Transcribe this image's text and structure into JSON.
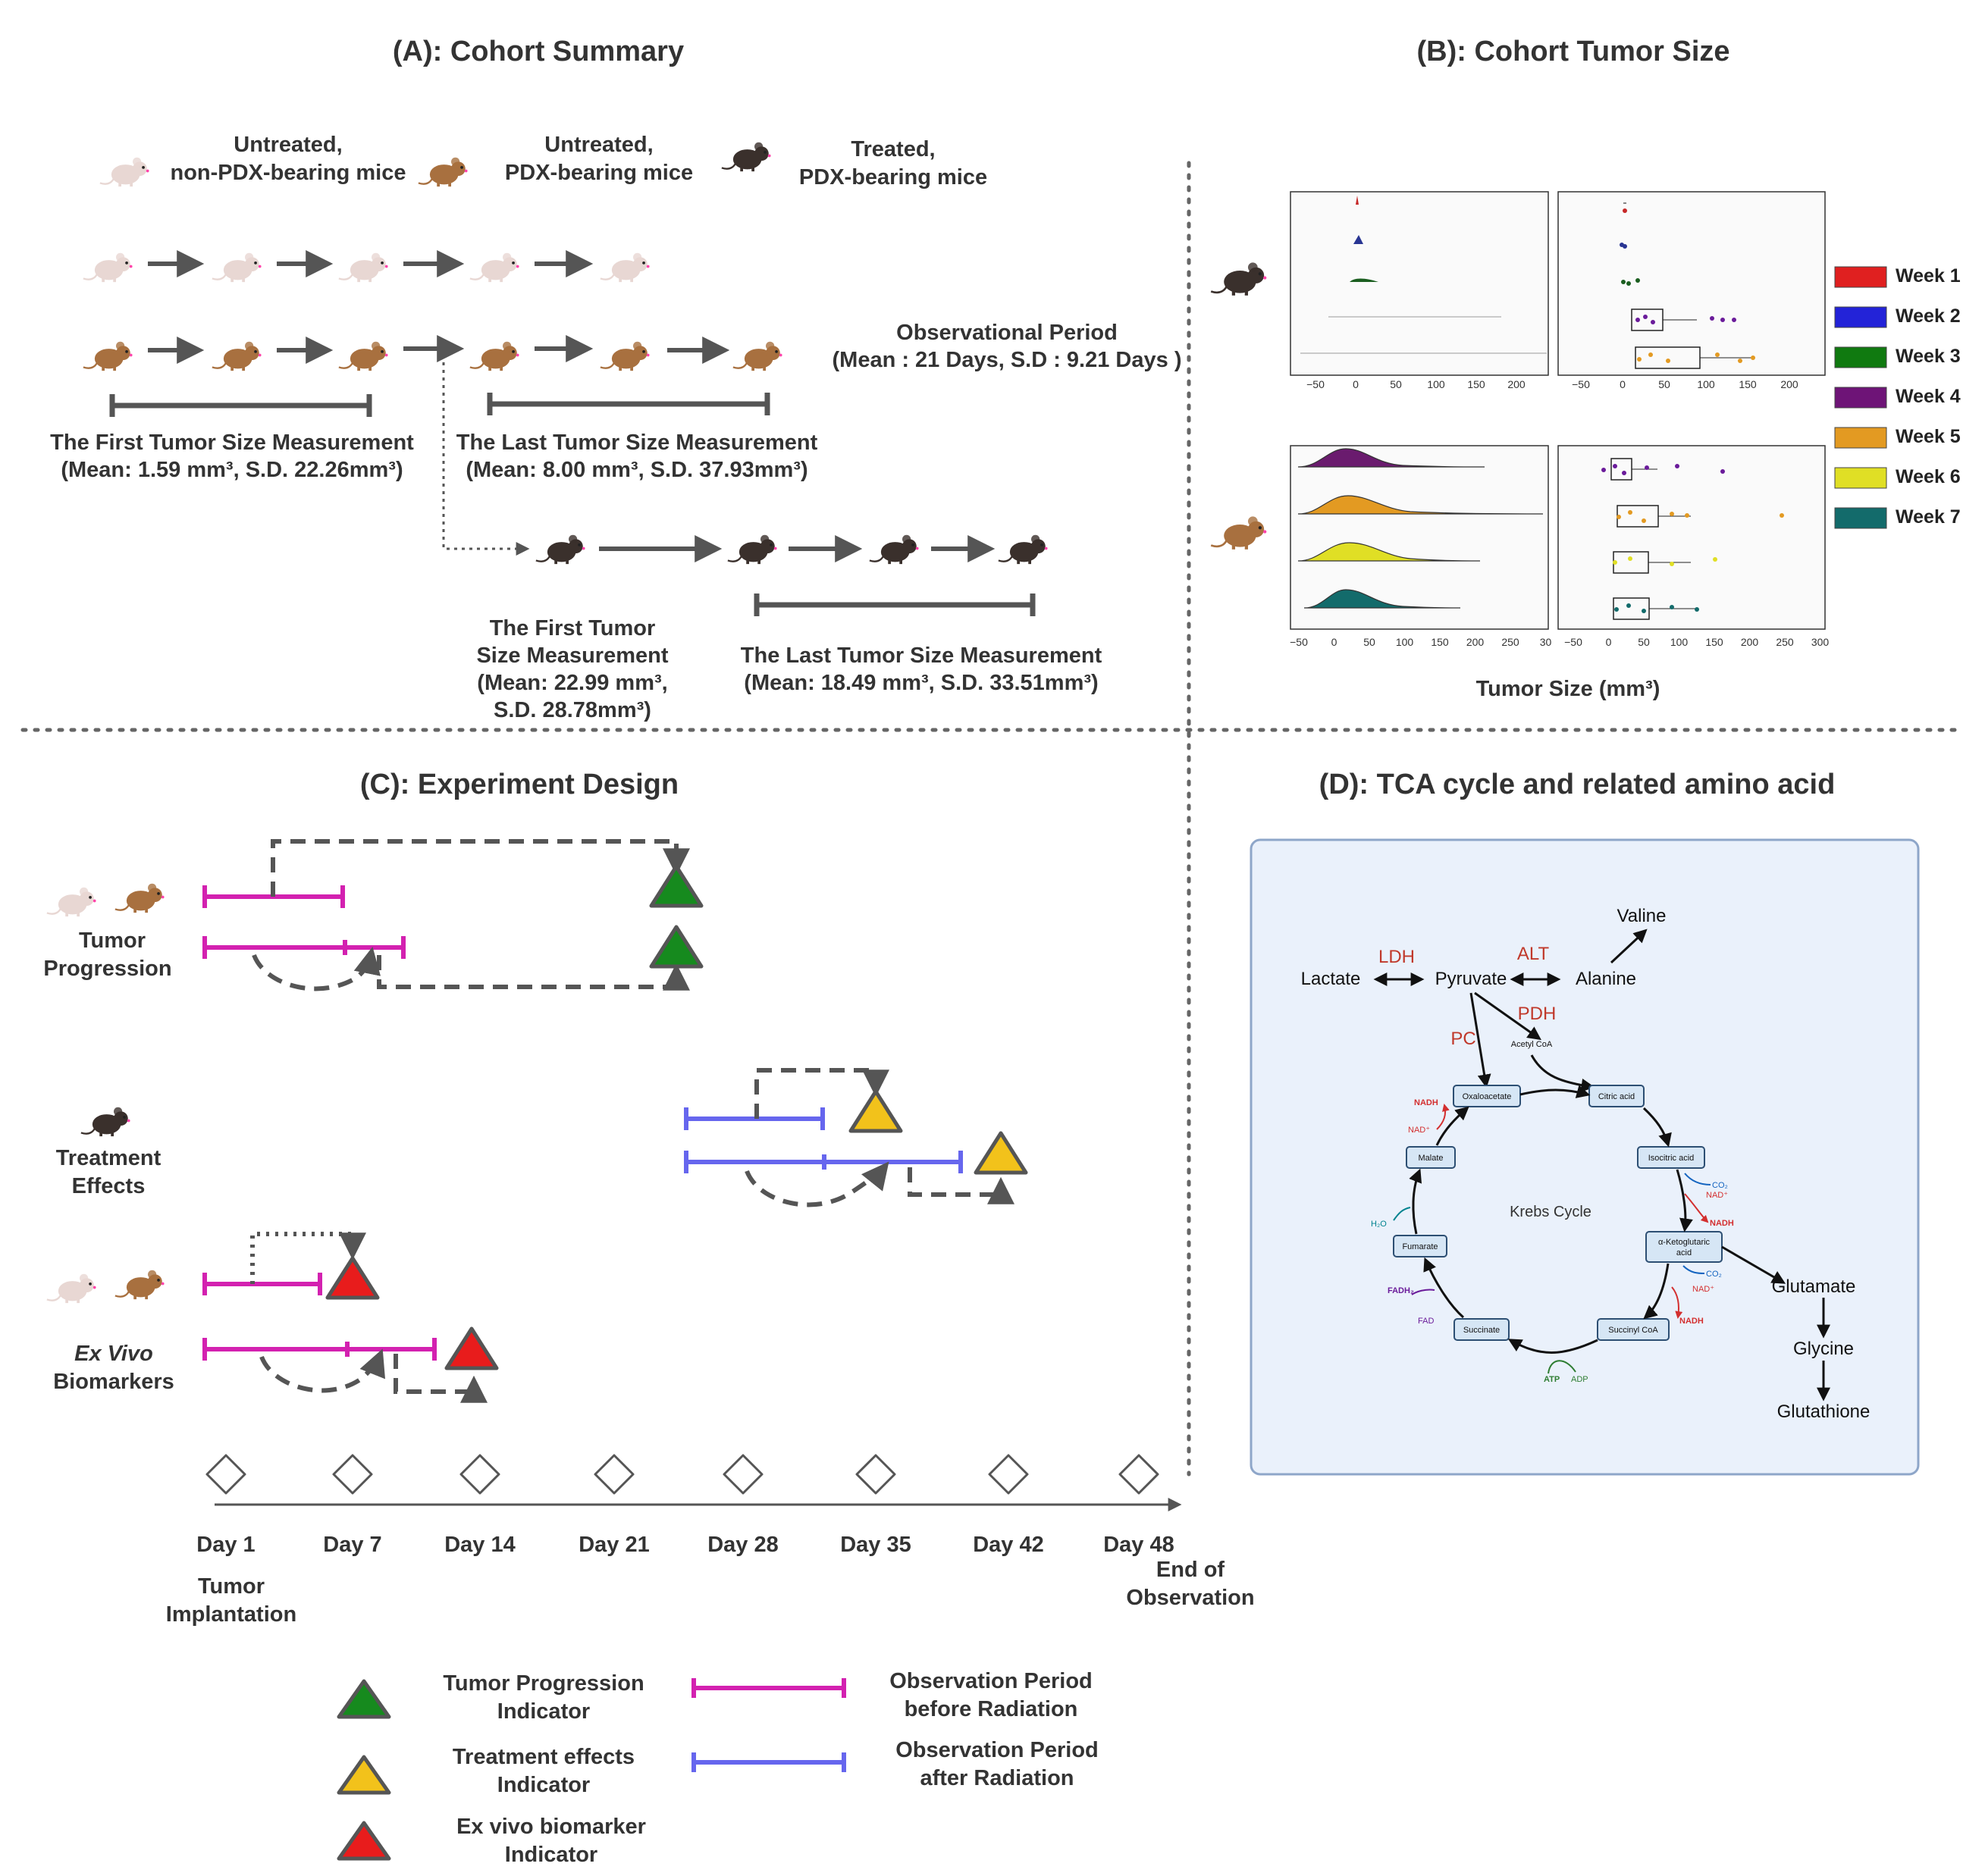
{
  "panel_a": {
    "title": "(A): Cohort Summary",
    "groups": [
      {
        "line1": "Untreated,",
        "line2": "non-PDX-bearing mice"
      },
      {
        "line1": "Untreated,",
        "line2": "PDX-bearing mice"
      },
      {
        "line1": "Treated,",
        "line2": "PDX-bearing mice"
      }
    ],
    "obs_period": {
      "line1": "Observational Period",
      "line2": "(Mean : 21 Days, S.D : 9.21 Days )"
    },
    "untreated_first": {
      "line1": "The First Tumor Size Measurement",
      "line2": "(Mean: 1.59 mm³, S.D. 22.26mm³)"
    },
    "untreated_last": {
      "line1": "The Last Tumor Size Measurement",
      "line2": "(Mean: 8.00 mm³, S.D. 37.93mm³)"
    },
    "treated_first": {
      "line1": "The First Tumor",
      "line2": "Size Measurement",
      "line3": "(Mean: 22.99 mm³,",
      "line4": "S.D. 28.78mm³)"
    },
    "treated_last": {
      "line1": "The Last Tumor Size Measurement",
      "line2": "(Mean: 18.49 mm³, S.D. 33.51mm³)"
    }
  },
  "panel_b": {
    "title": "(B): Cohort Tumor Size",
    "xlabel": "Tumor Size (mm³)",
    "top_ticks": [
      "−50",
      "0",
      "50",
      "100",
      "150",
      "200"
    ],
    "bottom_ticks": [
      "−50",
      "0",
      "50",
      "100",
      "150",
      "200",
      "250",
      "300"
    ],
    "bottom_left_ticks": [
      "−50",
      "0",
      "50",
      "100",
      "150",
      "200",
      "250",
      "30"
    ],
    "legend": [
      {
        "label": "Week 1",
        "color": "#e02020"
      },
      {
        "label": "Week 2",
        "color": "#2323d8"
      },
      {
        "label": "Week 3",
        "color": "#107a10"
      },
      {
        "label": "Week 4",
        "color": "#6e1477"
      },
      {
        "label": "Week 5",
        "color": "#e39a22"
      },
      {
        "label": "Week 6",
        "color": "#e0df25"
      },
      {
        "label": "Week 7",
        "color": "#136b6b"
      }
    ]
  },
  "panel_c": {
    "title": "(C): Experiment Design",
    "row1": {
      "line1": "Tumor",
      "line2": "Progression"
    },
    "row2": {
      "line1": "Treatment",
      "line2": "Effects"
    },
    "row3": {
      "line1": "Ex Vivo",
      "line2": "Biomarkers"
    },
    "days": [
      "Day 1",
      "Day 7",
      "Day 14",
      "Day 21",
      "Day 28",
      "Day 35",
      "Day 42",
      "Day 48"
    ],
    "start_label": {
      "line1": "Tumor",
      "line2": "Implantation"
    },
    "end_label": {
      "line1": "End of",
      "line2": "Observation"
    },
    "legend": {
      "tp": {
        "line1": "Tumor Progression",
        "line2": "Indicator"
      },
      "te": {
        "line1": "Treatment effects",
        "line2": "Indicator"
      },
      "ev": {
        "line1": "Ex vivo biomarker",
        "line2": "Indicator"
      },
      "before": {
        "line1": "Observation Period",
        "line2": "before Radiation"
      },
      "after": {
        "line1": "Observation Period",
        "line2": "after Radiation"
      }
    },
    "colors": {
      "pink": "#d321b0",
      "blue": "#6666ee",
      "green": "#168a1e",
      "yellow": "#f2c21b",
      "red": "#e81c1c"
    }
  },
  "panel_d": {
    "title": "(D): TCA cycle and related amino acid",
    "lactate": "Lactate",
    "pyruvate": "Pyruvate",
    "alanine": "Alanine",
    "valine": "Valine",
    "ldh": "LDH",
    "alt": "ALT",
    "pdh": "PDH",
    "pc": "PC",
    "acetyl": "Acetyl CoA",
    "cycle": "Krebs Cycle",
    "boxes": {
      "oxaloacetate": "Oxaloacetate",
      "citric": "Citric acid",
      "isocitric": "Isocitric acid",
      "akg1": "α-Ketoglutaric",
      "akg2": "acid",
      "succinyl": "Succinyl CoA",
      "succinate": "Succinate",
      "fumarate": "Fumarate",
      "malate": "Malate"
    },
    "cof": {
      "nadh": "NADH",
      "nad": "NAD⁺",
      "co2": "CO₂",
      "fadh2": "FADH₂",
      "fad": "FAD",
      "h2o": "H₂O",
      "atp": "ATP",
      "adp": "ADP"
    },
    "glutamate": "Glutamate",
    "glycine": "Glycine",
    "glutathione": "Glutathione"
  }
}
